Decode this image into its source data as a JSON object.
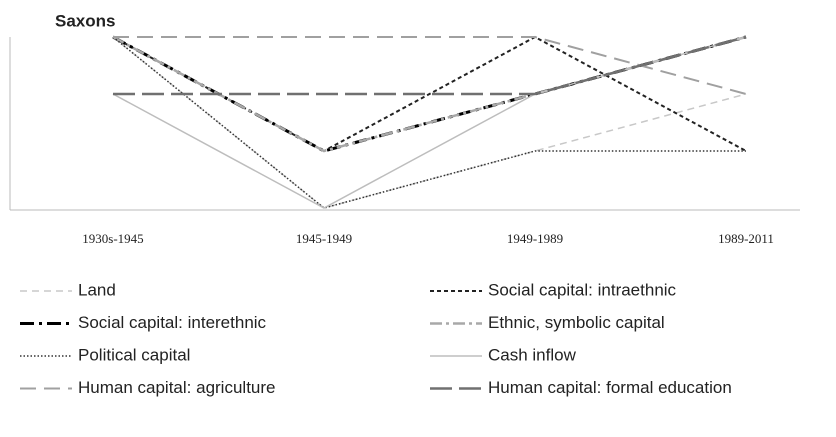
{
  "chart_data": {
    "type": "line",
    "title": "Saxons",
    "categories": [
      "1930s-1945",
      "1945-1949",
      "1949-1989",
      "1989-2011"
    ],
    "ylim": [
      1,
      4
    ],
    "series": [
      {
        "name": "Land",
        "color": "#c8c8c8",
        "dash": "7,5",
        "width": 1.5,
        "values": [
          4,
          1,
          2,
          3
        ]
      },
      {
        "name": "Social capital: intraethnic",
        "color": "#222222",
        "dash": "4,3",
        "width": 2,
        "values": [
          4,
          2,
          4,
          2
        ]
      },
      {
        "name": "Social capital: interethnic",
        "color": "#000000",
        "dash": "14,5,3,5",
        "width": 3,
        "values": [
          4,
          2,
          3,
          4
        ]
      },
      {
        "name": "Ethnic, symbolic capital",
        "color": "#a8a8a8",
        "dash": "12,4,3,4",
        "width": 2.5,
        "values": [
          4,
          2,
          3,
          4
        ]
      },
      {
        "name": "Political capital",
        "color": "#333333",
        "dash": "1.5,2",
        "width": 1.5,
        "values": [
          4,
          1,
          2,
          2
        ]
      },
      {
        "name": "Cash inflow",
        "color": "#bdbdbd",
        "dash": "none",
        "width": 1.5,
        "values": [
          3,
          1,
          3,
          4
        ]
      },
      {
        "name": "Human capital: agriculture",
        "color": "#a0a0a0",
        "dash": "16,8",
        "width": 2,
        "values": [
          4,
          4,
          4,
          3
        ]
      },
      {
        "name": "Human capital: formal education",
        "color": "#707070",
        "dash": "22,7",
        "width": 2.5,
        "values": [
          3,
          3,
          3,
          4
        ]
      }
    ]
  }
}
